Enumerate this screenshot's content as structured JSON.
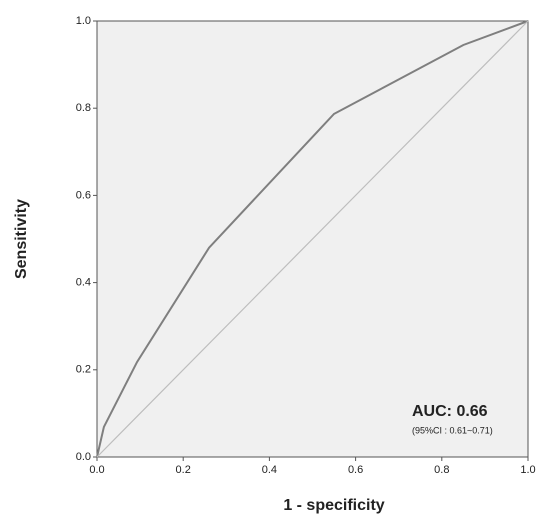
{
  "chart_data": {
    "type": "line",
    "xlabel": "1 - specificity",
    "ylabel": "Sensitivity",
    "xlim": [
      0,
      1
    ],
    "ylim": [
      0,
      1
    ],
    "xticks": [
      {
        "value": 0,
        "label": "0.0"
      },
      0.2,
      0.4,
      0.6,
      0.8,
      {
        "value": 1,
        "label": "1.0"
      }
    ],
    "yticks": [
      {
        "value": 0,
        "label": "0.0"
      },
      0.2,
      0.4,
      0.6,
      0.8,
      {
        "value": 1,
        "label": "1.0"
      }
    ],
    "series": [
      {
        "x": [
          0,
          0.016,
          0.093,
          0.26,
          0.55,
          0.85,
          1
        ],
        "values": [
          0,
          0.069,
          0.218,
          0.48,
          0.787,
          0.945,
          1
        ],
        "color": "#7f7f7f"
      },
      {
        "x": [
          0,
          1
        ],
        "values": [
          0,
          1
        ],
        "color": "#bdbdbd"
      }
    ],
    "annotations": [
      "AUC: 0.66",
      "(95%CI : 0.61~0.71)"
    ]
  }
}
